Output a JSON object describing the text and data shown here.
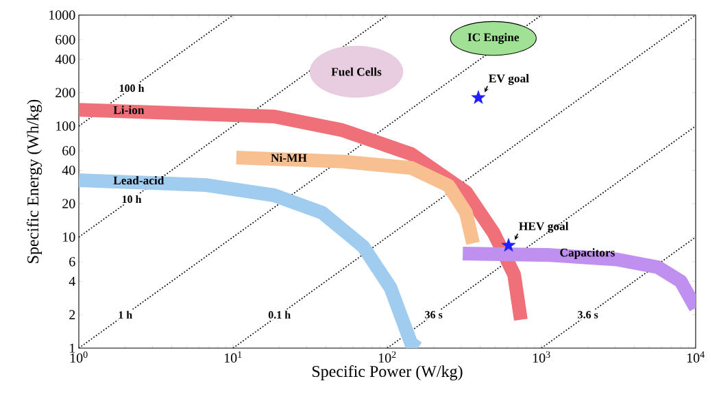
{
  "chart_data": {
    "type": "line",
    "log": "xy",
    "xlabel": "Specific Power (W/kg)",
    "ylabel": "Specific Energy (Wh/kg)",
    "xlim": [
      1,
      10000
    ],
    "ylim": [
      1,
      1000
    ],
    "xticks": [
      {
        "value": 1,
        "label": "10$^{0}$"
      },
      {
        "value": 10,
        "label": "10$^{1}$"
      },
      {
        "value": 100,
        "label": "10$^{2}$"
      },
      {
        "value": 1000,
        "label": "10$^{3}$"
      },
      {
        "value": 10000,
        "label": "10$^{4}$"
      }
    ],
    "yticks": [
      1,
      2,
      4,
      6,
      10,
      20,
      40,
      60,
      100,
      200,
      400,
      600,
      1000
    ],
    "grid": false,
    "marker": "none",
    "series": [
      {
        "name": "100 h",
        "color": "#000000",
        "line_style": "dotted",
        "x": [
          1,
          10
        ],
        "values": [
          100,
          1000
        ]
      },
      {
        "name": "10 h",
        "color": "#000000",
        "line_style": "dotted",
        "x": [
          1,
          100
        ],
        "values": [
          10,
          1000
        ]
      },
      {
        "name": "1 h",
        "color": "#000000",
        "line_style": "dotted",
        "x": [
          1,
          1000
        ],
        "values": [
          1,
          1000
        ]
      },
      {
        "name": "0.1 h",
        "color": "#000000",
        "line_style": "dotted",
        "x": [
          10,
          10000
        ],
        "values": [
          1,
          1000
        ]
      },
      {
        "name": "36 s",
        "color": "#000000",
        "line_style": "dotted",
        "x": [
          100,
          10000
        ],
        "values": [
          1,
          100
        ]
      },
      {
        "name": "3.6 s",
        "color": "#000000",
        "line_style": "dotted",
        "x": [
          1000,
          10000
        ],
        "values": [
          1,
          10
        ]
      },
      {
        "name": "Li-ion",
        "color": "#f0707a",
        "line_style": "solid",
        "x": [
          1,
          18.5,
          51,
          143,
          324,
          490,
          665,
          735
        ],
        "values": [
          140,
          122,
          92,
          56,
          25.5,
          10.9,
          4.6,
          1.8
        ]
      },
      {
        "name": "Ni-MH",
        "color": "#f8c090",
        "line_style": "solid",
        "x": [
          10.5,
          51,
          143,
          250,
          324,
          360
        ],
        "values": [
          52,
          48,
          42,
          29,
          16.6,
          8.8
        ]
      },
      {
        "name": "Lead-acid",
        "color": "#a0ccf0",
        "line_style": "solid",
        "x": [
          1,
          6.6,
          18.5,
          37.8,
          70,
          105,
          143,
          158
        ],
        "values": [
          32.5,
          29.5,
          23.8,
          16.6,
          8.2,
          3.5,
          1.1,
          1
        ]
      },
      {
        "name": "Capacitors",
        "color": "#c090f0",
        "line_style": "solid",
        "x": [
          309,
          1100,
          3060,
          5700,
          8000,
          10000
        ],
        "values": [
          7.1,
          6.9,
          6.3,
          5.35,
          4.0,
          2.3
        ]
      },
      {
        "type": "scatter",
        "marker": "star",
        "color": "#1f1fff",
        "x": [
          390,
          612
        ],
        "values": [
          180,
          8.4
        ]
      }
    ],
    "annotations": [
      "Fuel Cells",
      "IC Engine",
      {
        "text": "EV goal",
        "x": 390,
        "y": 180
      },
      {
        "text": "HEV goal",
        "x": 612,
        "y": 8.4
      }
    ]
  }
}
